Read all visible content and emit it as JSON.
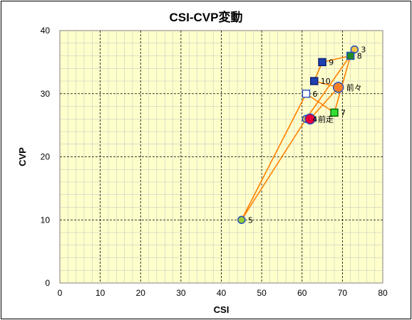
{
  "chart_data": {
    "type": "scatter",
    "title": "CSI-CVP変動",
    "xlabel": "CSI",
    "ylabel": "CVP",
    "xlim": [
      0,
      80
    ],
    "ylim": [
      0,
      40
    ],
    "xticks": [
      "0",
      "10",
      "20",
      "30",
      "40",
      "50",
      "60",
      "70",
      "80"
    ],
    "yticks": [
      "0",
      "10",
      "20",
      "30",
      "40"
    ],
    "grid": true,
    "minor_grid": true,
    "background": "#FFFFCC",
    "line_color": "#FF7F00",
    "line_sequence": [
      "3",
      "4",
      "5",
      "6",
      "7",
      "8",
      "9",
      "10",
      "前々",
      "前走"
    ],
    "points": [
      {
        "label": "3",
        "x": 73,
        "y": 37,
        "marker": "circle",
        "fill": "#F5C542",
        "stroke": "#1F4FBF"
      },
      {
        "label": "4",
        "x": 61,
        "y": 26,
        "marker": "circle",
        "fill": "#F5C542",
        "stroke": "#1F4FBF"
      },
      {
        "label": "5",
        "x": 45,
        "y": 10,
        "marker": "circle",
        "fill": "#9ACD32",
        "stroke": "#1F4FBF"
      },
      {
        "label": "6",
        "x": 61,
        "y": 30,
        "marker": "square",
        "fill": "#FFFFFF",
        "stroke": "#1F4FBF"
      },
      {
        "label": "7",
        "x": 68,
        "y": 27,
        "marker": "square",
        "fill": "#33DD33",
        "stroke": "#006600"
      },
      {
        "label": "8",
        "x": 72,
        "y": 36,
        "marker": "square",
        "fill": "#228B22",
        "stroke": "#1F4FBF"
      },
      {
        "label": "9",
        "x": 65,
        "y": 35,
        "marker": "square",
        "fill": "#1F3FAF",
        "stroke": "#0A1F6F"
      },
      {
        "label": "10",
        "x": 63,
        "y": 32,
        "marker": "square",
        "fill": "#1F3FAF",
        "stroke": "#0A1F6F"
      },
      {
        "label": "前々",
        "x": 69,
        "y": 31,
        "marker": "circle-large",
        "fill": "#FF7F27",
        "stroke": "#1F4FBF"
      },
      {
        "label": "前走",
        "x": 62,
        "y": 26,
        "marker": "circle-large",
        "fill": "#E8003A",
        "stroke": "#1F4FBF"
      }
    ]
  }
}
